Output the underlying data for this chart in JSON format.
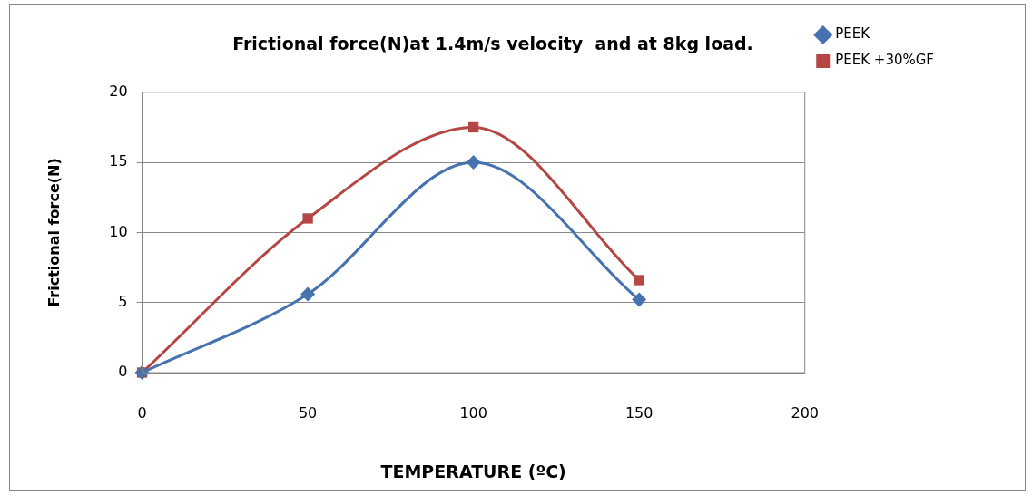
{
  "chart_data": {
    "type": "line",
    "title": "Frictional force(N)at 1.4m/s velocity  and at 8kg load.",
    "xlabel": "TEMPERATURE (ºC)",
    "ylabel": "Frictional force(N)",
    "x": [
      0,
      50,
      100,
      150
    ],
    "series": [
      {
        "name": "PEEK",
        "color": "#4672b0",
        "marker": "diamond",
        "values": [
          0,
          5.6,
          15,
          5.2
        ]
      },
      {
        "name": "PEEK +30%GF",
        "color": "#b44644",
        "marker": "square",
        "values": [
          0,
          11,
          17.5,
          6.6
        ]
      }
    ],
    "xlim": [
      0,
      200
    ],
    "xticks": [
      0,
      50,
      100,
      150,
      200
    ],
    "ylim": [
      0,
      20
    ],
    "yticks": [
      0,
      5,
      10,
      15,
      20
    ],
    "grid": "y",
    "legend": "right",
    "line_style": "solid"
  }
}
